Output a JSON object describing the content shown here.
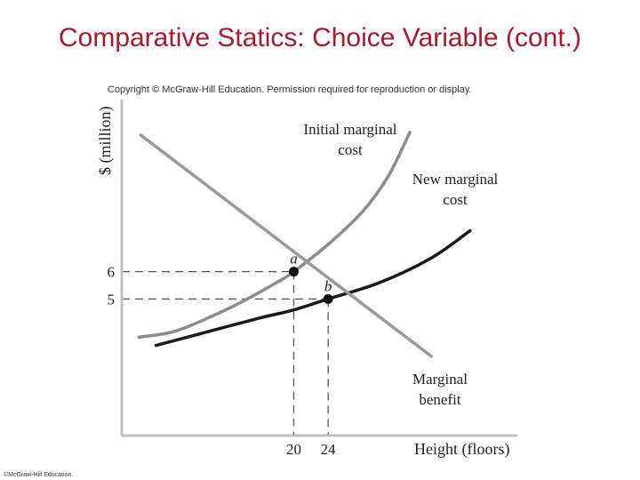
{
  "slide": {
    "title": "Comparative Statics: Choice Variable (cont.)",
    "copyright": "Copyright © McGraw-Hill Education. Permission required for reproduction or display.",
    "footer": "©McGraw-Hill Education."
  },
  "colors": {
    "title": "#a6192e",
    "initial_curve": "#8c8c8c",
    "benefit_curve": "#9a9a9a",
    "new_curve": "#1a1a1a",
    "dashes": "#555555"
  },
  "chart_data": {
    "type": "line",
    "xlabel": "Height (floors)",
    "ylabel": "$ (million)",
    "xlim": [
      0,
      46
    ],
    "ylim": [
      0,
      12.3
    ],
    "x_ticks": [
      {
        "value": 20,
        "label": "20"
      },
      {
        "value": 24,
        "label": "24"
      }
    ],
    "y_ticks": [
      {
        "value": 6,
        "label": "6"
      },
      {
        "value": 5,
        "label": "5"
      }
    ],
    "grid": false,
    "series": [
      {
        "name": "Initial marginal cost",
        "label_lines": [
          "Initial marginal",
          "cost"
        ],
        "points": [
          [
            2,
            3.6
          ],
          [
            6,
            3.8
          ],
          [
            10,
            4.3
          ],
          [
            14,
            4.9
          ],
          [
            18,
            5.6
          ],
          [
            20,
            6.0
          ],
          [
            24,
            7.0
          ],
          [
            28,
            8.2
          ],
          [
            31,
            9.5
          ],
          [
            33.5,
            11.1
          ]
        ]
      },
      {
        "name": "New marginal cost",
        "label_lines": [
          "New marginal",
          "cost"
        ],
        "points": [
          [
            4,
            3.3
          ],
          [
            10,
            3.8
          ],
          [
            16,
            4.3
          ],
          [
            20,
            4.6
          ],
          [
            24,
            5.0
          ],
          [
            30,
            5.6
          ],
          [
            36,
            6.5
          ],
          [
            40.5,
            7.5
          ]
        ]
      },
      {
        "name": "Marginal benefit",
        "label_lines": [
          "Marginal",
          "benefit"
        ],
        "points": [
          [
            2.2,
            11.0
          ],
          [
            36,
            2.9
          ]
        ]
      }
    ],
    "annotations": [
      {
        "label": "a",
        "x": 20,
        "y": 6
      },
      {
        "label": "b",
        "x": 24,
        "y": 5
      }
    ]
  }
}
